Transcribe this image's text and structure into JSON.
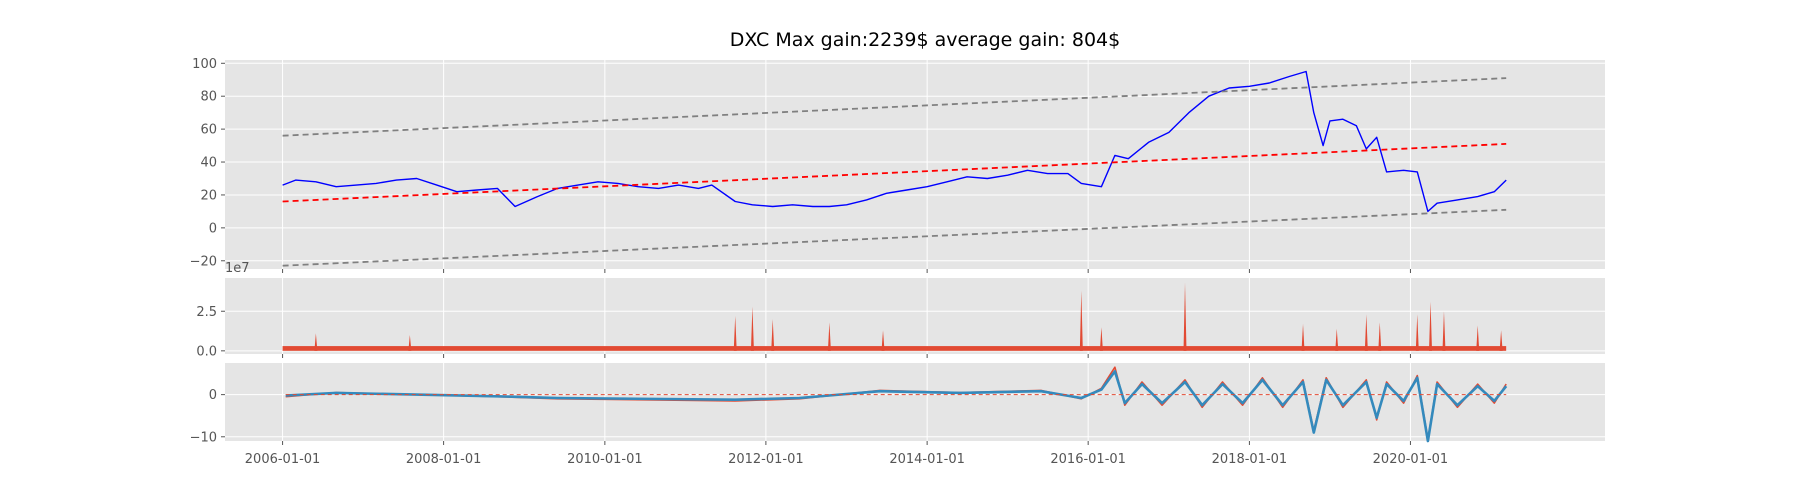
{
  "chart_data": [
    {
      "panel": "price",
      "type": "line",
      "title": "DXC Max gain:2239$  average gain: 804$",
      "ylim": [
        -25,
        102
      ],
      "yticks": [
        100,
        80,
        60,
        40,
        20,
        0,
        -20
      ],
      "ytick_labels": [
        "100",
        "80",
        "60",
        "40",
        "20",
        "0",
        "−20"
      ],
      "grid": true,
      "series": [
        {
          "role": "price",
          "color": "#0000ff",
          "x": [
            "2006-01-01",
            "2006-03-01",
            "2006-06-01",
            "2006-09-01",
            "2006-12-01",
            "2007-03-01",
            "2007-06-01",
            "2007-09-01",
            "2007-12-01",
            "2008-03-01",
            "2008-06-01",
            "2008-09-01",
            "2008-11-20",
            "2009-03-01",
            "2009-06-01",
            "2009-09-01",
            "2009-12-01",
            "2010-03-01",
            "2010-06-01",
            "2010-09-01",
            "2010-12-01",
            "2011-03-01",
            "2011-05-01",
            "2011-08-15",
            "2011-11-01",
            "2012-02-01",
            "2012-05-01",
            "2012-08-01",
            "2012-10-15",
            "2013-01-01",
            "2013-04-01",
            "2013-07-01",
            "2013-10-01",
            "2014-01-01",
            "2014-04-01",
            "2014-07-01",
            "2014-10-01",
            "2015-01-01",
            "2015-04-01",
            "2015-07-01",
            "2015-10-01",
            "2015-12-01",
            "2016-03-01",
            "2016-05-01",
            "2016-07-01",
            "2016-10-01",
            "2017-01-01",
            "2017-04-01",
            "2017-07-01",
            "2017-10-01",
            "2018-01-01",
            "2018-04-01",
            "2018-07-01",
            "2018-09-15",
            "2018-10-20",
            "2018-12-01",
            "2019-01-01",
            "2019-03-01",
            "2019-05-01",
            "2019-06-15",
            "2019-08-01",
            "2019-09-15",
            "2019-12-01",
            "2020-02-01",
            "2020-03-20",
            "2020-05-01",
            "2020-08-01",
            "2020-11-01",
            "2021-01-15",
            "2021-03-10"
          ],
          "y": [
            26,
            29,
            28,
            25,
            26,
            27,
            29,
            30,
            26,
            22,
            23,
            24,
            13,
            19,
            24,
            26,
            28,
            27,
            25,
            24,
            26,
            24,
            26,
            16,
            14,
            13,
            14,
            13,
            13,
            14,
            17,
            21,
            23,
            25,
            28,
            31,
            30,
            32,
            35,
            33,
            33,
            27,
            25,
            44,
            42,
            52,
            58,
            70,
            80,
            85,
            86,
            88,
            92,
            95,
            70,
            50,
            65,
            66,
            62,
            48,
            55,
            34,
            35,
            34,
            10,
            15,
            17,
            19,
            22,
            29
          ]
        },
        {
          "role": "trend",
          "color": "#ff0000",
          "x": [
            "2006-01-01",
            "2021-03-10"
          ],
          "y": [
            16,
            51
          ]
        },
        {
          "role": "upper-band",
          "color": "#808080",
          "x": [
            "2006-01-01",
            "2021-03-10"
          ],
          "y": [
            56,
            91
          ]
        },
        {
          "role": "lower-band",
          "color": "#808080",
          "x": [
            "2006-01-01",
            "2021-03-10"
          ],
          "y": [
            -23,
            11
          ]
        }
      ]
    },
    {
      "panel": "volume",
      "type": "area",
      "offset_label": "1e7",
      "ylim": [
        -0.2,
        4.6
      ],
      "yticks": [
        2.5,
        0.0
      ],
      "ytick_labels": [
        "2.5",
        "0.0"
      ],
      "grid": true,
      "color": "#e24a33",
      "baseline": 0.3,
      "spikes": [
        {
          "x": "2006-06-01",
          "y": 1.1
        },
        {
          "x": "2007-08-01",
          "y": 1.0
        },
        {
          "x": "2011-08-15",
          "y": 2.2
        },
        {
          "x": "2011-11-01",
          "y": 2.8
        },
        {
          "x": "2012-02-01",
          "y": 2.0
        },
        {
          "x": "2012-10-15",
          "y": 1.8
        },
        {
          "x": "2013-06-15",
          "y": 1.3
        },
        {
          "x": "2015-12-01",
          "y": 3.8
        },
        {
          "x": "2016-03-01",
          "y": 1.5
        },
        {
          "x": "2017-03-15",
          "y": 4.3
        },
        {
          "x": "2018-09-01",
          "y": 1.7
        },
        {
          "x": "2019-02-01",
          "y": 1.4
        },
        {
          "x": "2019-06-15",
          "y": 2.3
        },
        {
          "x": "2019-08-15",
          "y": 1.8
        },
        {
          "x": "2020-02-01",
          "y": 2.3
        },
        {
          "x": "2020-04-01",
          "y": 3.1
        },
        {
          "x": "2020-06-01",
          "y": 2.5
        },
        {
          "x": "2020-11-01",
          "y": 1.6
        },
        {
          "x": "2021-02-15",
          "y": 1.3
        }
      ]
    },
    {
      "panel": "oscillator",
      "type": "line",
      "ylim": [
        -11,
        7.5
      ],
      "yticks": [
        0,
        -10
      ],
      "ytick_labels": [
        "0",
        "−10"
      ],
      "grid": true,
      "series": [
        {
          "role": "oscillator-signal",
          "color": "#e24a33",
          "x": [
            "2006-01-15",
            "2006-09-01",
            "2008-09-01",
            "2009-06-01",
            "2011-08-15",
            "2012-06-01",
            "2013-06-01",
            "2014-06-01",
            "2015-06-01",
            "2015-12-01",
            "2016-03-01",
            "2016-05-01",
            "2016-06-15",
            "2016-09-01",
            "2016-12-01",
            "2017-03-15",
            "2017-06-01",
            "2017-09-01",
            "2017-12-01",
            "2018-03-01",
            "2018-06-01",
            "2018-09-01",
            "2018-10-20",
            "2018-12-15",
            "2019-03-01",
            "2019-06-15",
            "2019-08-01",
            "2019-09-15",
            "2019-12-01",
            "2020-02-01",
            "2020-03-20",
            "2020-05-01",
            "2020-08-01",
            "2020-11-01",
            "2021-01-15",
            "2021-03-10"
          ],
          "y": [
            -0.5,
            0.5,
            -0.5,
            -1.0,
            -1.5,
            -1.0,
            1.0,
            0.5,
            1.0,
            -1.0,
            1.5,
            6.5,
            -2.5,
            3.0,
            -2.5,
            3.5,
            -3.0,
            3.0,
            -2.5,
            4.0,
            -3.0,
            3.5,
            -8.5,
            4.0,
            -3.0,
            3.5,
            -6.0,
            3.0,
            -2.0,
            4.5,
            -10.5,
            3.0,
            -3.0,
            2.5,
            -2.0,
            2.5
          ]
        },
        {
          "role": "oscillator-main",
          "color": "#348abd",
          "x": [
            "2006-01-15",
            "2006-09-01",
            "2008-09-01",
            "2009-06-01",
            "2011-08-15",
            "2012-06-01",
            "2013-06-01",
            "2014-06-01",
            "2015-06-01",
            "2015-12-01",
            "2016-03-01",
            "2016-05-01",
            "2016-06-15",
            "2016-09-01",
            "2016-12-01",
            "2017-03-15",
            "2017-06-01",
            "2017-09-01",
            "2017-12-01",
            "2018-03-01",
            "2018-06-01",
            "2018-09-01",
            "2018-10-20",
            "2018-12-15",
            "2019-03-01",
            "2019-06-15",
            "2019-08-01",
            "2019-09-15",
            "2019-12-01",
            "2020-02-01",
            "2020-03-20",
            "2020-05-01",
            "2020-08-01",
            "2020-11-01",
            "2021-01-15",
            "2021-03-10"
          ],
          "y": [
            -0.2,
            0.4,
            -0.4,
            -0.8,
            -1.2,
            -0.8,
            0.8,
            0.4,
            0.8,
            -0.8,
            1.2,
            5.5,
            -2.0,
            2.5,
            -2.0,
            3.0,
            -2.5,
            2.5,
            -2.0,
            3.5,
            -2.5,
            3.0,
            -9.0,
            3.5,
            -2.5,
            3.0,
            -5.5,
            2.5,
            -1.5,
            4.0,
            -11.0,
            2.5,
            -2.5,
            2.0,
            -1.5,
            2.0
          ]
        },
        {
          "role": "zero-line",
          "color": "#e24a33",
          "x": [
            "2006-01-15",
            "2021-03-10"
          ],
          "y": [
            0,
            0
          ]
        }
      ],
      "xtick_labels": [
        "2006-01-01",
        "2008-01-01",
        "2010-01-01",
        "2012-01-01",
        "2014-01-01",
        "2016-01-01",
        "2018-01-01",
        "2020-01-01"
      ]
    }
  ]
}
